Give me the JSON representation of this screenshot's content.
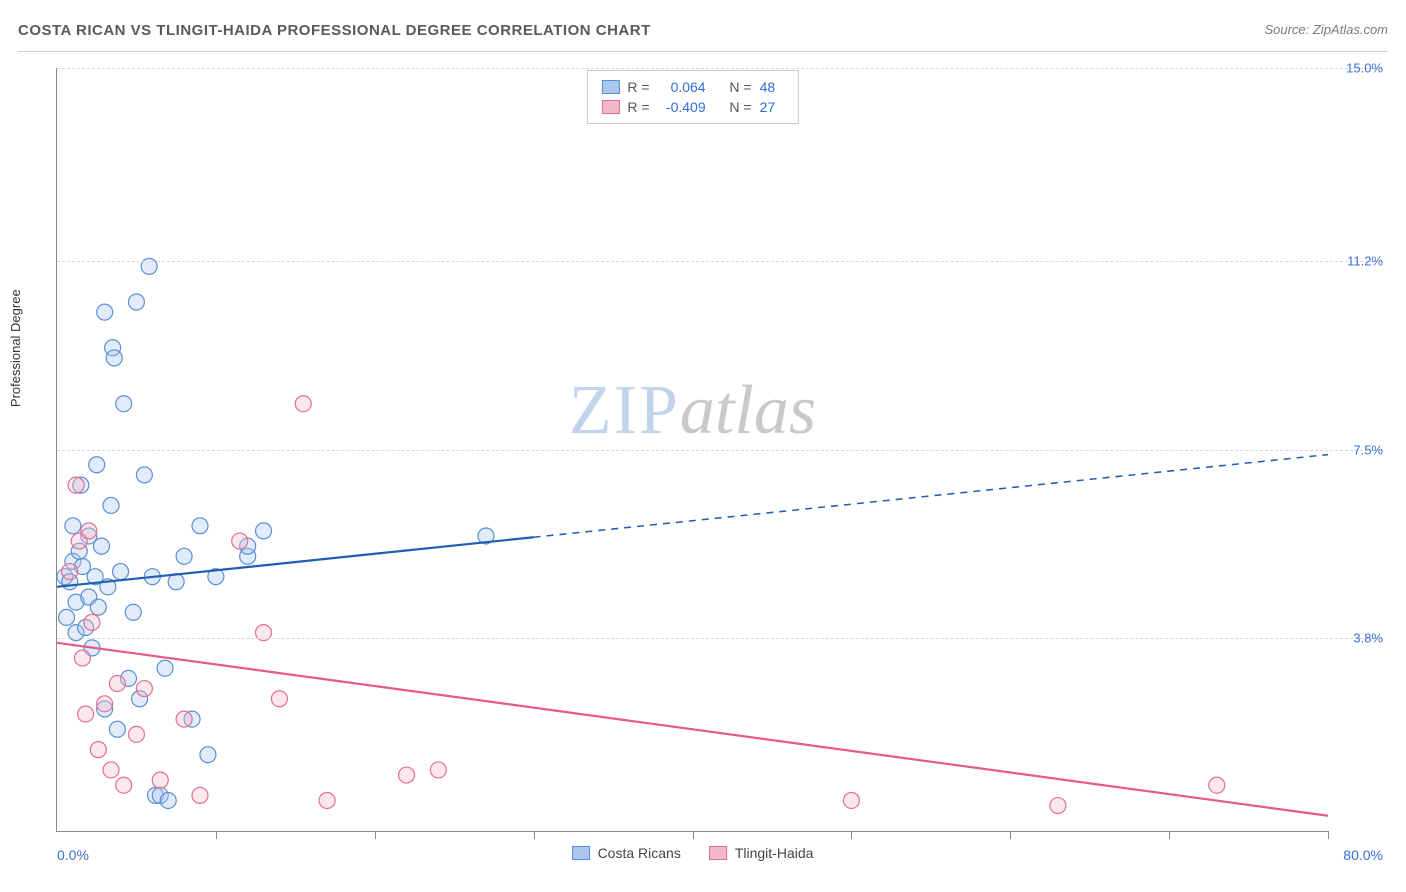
{
  "header": {
    "title": "COSTA RICAN VS TLINGIT-HAIDA PROFESSIONAL DEGREE CORRELATION CHART",
    "source": "Source: ZipAtlas.com"
  },
  "watermark": {
    "zip": "ZIP",
    "atlas": "atlas"
  },
  "chart": {
    "type": "scatter",
    "ylabel": "Professional Degree",
    "xlim": [
      0,
      80
    ],
    "ylim": [
      0,
      15
    ],
    "x_min_label": "0.0%",
    "x_max_label": "80.0%",
    "y_ticks": [
      3.8,
      7.5,
      11.2,
      15.0
    ],
    "y_tick_labels": [
      "3.8%",
      "7.5%",
      "11.2%",
      "15.0%"
    ],
    "x_ticks": [
      10,
      20,
      30,
      40,
      50,
      60,
      70,
      80
    ],
    "background_color": "#ffffff",
    "grid_color": "#d8d8d8",
    "axis_color": "#888888",
    "tick_label_color": "#3b6fd6",
    "marker_radius": 8,
    "marker_stroke_width": 1.2,
    "marker_fill_opacity": 0.35,
    "series": [
      {
        "key": "costa_ricans",
        "label": "Costa Ricans",
        "fill": "#a9c7ee",
        "stroke": "#5a8fd6",
        "line_color": "#1e5fb3",
        "line_width": 2.2,
        "R": "0.064",
        "N": "48",
        "trend": {
          "x1": 0,
          "y1": 4.8,
          "x2": 80,
          "y2": 7.4,
          "solid_until_x": 30
        },
        "points": [
          [
            0.5,
            5.0
          ],
          [
            0.6,
            4.2
          ],
          [
            0.8,
            4.9
          ],
          [
            1.0,
            6.0
          ],
          [
            1.0,
            5.3
          ],
          [
            1.2,
            4.5
          ],
          [
            1.2,
            3.9
          ],
          [
            1.4,
            5.5
          ],
          [
            1.5,
            6.8
          ],
          [
            1.6,
            5.2
          ],
          [
            1.8,
            4.0
          ],
          [
            2.0,
            5.8
          ],
          [
            2.0,
            4.6
          ],
          [
            2.2,
            3.6
          ],
          [
            2.4,
            5.0
          ],
          [
            2.5,
            7.2
          ],
          [
            2.6,
            4.4
          ],
          [
            2.8,
            5.6
          ],
          [
            3.0,
            2.4
          ],
          [
            3.2,
            4.8
          ],
          [
            3.4,
            6.4
          ],
          [
            3.5,
            9.5
          ],
          [
            3.6,
            9.3
          ],
          [
            3.8,
            2.0
          ],
          [
            4.0,
            5.1
          ],
          [
            4.2,
            8.4
          ],
          [
            4.5,
            3.0
          ],
          [
            4.8,
            4.3
          ],
          [
            5.0,
            10.4
          ],
          [
            5.2,
            2.6
          ],
          [
            5.5,
            7.0
          ],
          [
            5.8,
            11.1
          ],
          [
            6.0,
            5.0
          ],
          [
            6.2,
            0.7
          ],
          [
            6.5,
            0.7
          ],
          [
            6.8,
            3.2
          ],
          [
            7.0,
            0.6
          ],
          [
            7.5,
            4.9
          ],
          [
            8.0,
            5.4
          ],
          [
            8.5,
            2.2
          ],
          [
            9.0,
            6.0
          ],
          [
            9.5,
            1.5
          ],
          [
            10.0,
            5.0
          ],
          [
            12.0,
            5.4
          ],
          [
            12.0,
            5.6
          ],
          [
            13.0,
            5.9
          ],
          [
            27.0,
            5.8
          ],
          [
            3.0,
            10.2
          ]
        ]
      },
      {
        "key": "tlingit_haida",
        "label": "Tlingit-Haida",
        "fill": "#f3b9c8",
        "stroke": "#e26f8f",
        "line_color": "#e75a86",
        "line_width": 2.2,
        "R": "-0.409",
        "N": "27",
        "trend": {
          "x1": 0,
          "y1": 3.7,
          "x2": 80,
          "y2": 0.3,
          "solid_until_x": 80
        },
        "points": [
          [
            0.8,
            5.1
          ],
          [
            1.2,
            6.8
          ],
          [
            1.4,
            5.7
          ],
          [
            1.6,
            3.4
          ],
          [
            1.8,
            2.3
          ],
          [
            2.0,
            5.9
          ],
          [
            2.2,
            4.1
          ],
          [
            2.6,
            1.6
          ],
          [
            3.0,
            2.5
          ],
          [
            3.4,
            1.2
          ],
          [
            3.8,
            2.9
          ],
          [
            4.2,
            0.9
          ],
          [
            5.0,
            1.9
          ],
          [
            5.5,
            2.8
          ],
          [
            6.5,
            1.0
          ],
          [
            8.0,
            2.2
          ],
          [
            9.0,
            0.7
          ],
          [
            11.5,
            5.7
          ],
          [
            13.0,
            3.9
          ],
          [
            14.0,
            2.6
          ],
          [
            15.5,
            8.4
          ],
          [
            17.0,
            0.6
          ],
          [
            22.0,
            1.1
          ],
          [
            24.0,
            1.2
          ],
          [
            50.0,
            0.6
          ],
          [
            63.0,
            0.5
          ],
          [
            73.0,
            0.9
          ]
        ]
      }
    ],
    "legend_top_labels": {
      "R": "R =",
      "N": "N ="
    },
    "legend_bottom": [
      {
        "label": "Costa Ricans",
        "fill": "#a9c7ee",
        "stroke": "#5a8fd6"
      },
      {
        "label": "Tlingit-Haida",
        "fill": "#f3b9c8",
        "stroke": "#e26f8f"
      }
    ]
  }
}
